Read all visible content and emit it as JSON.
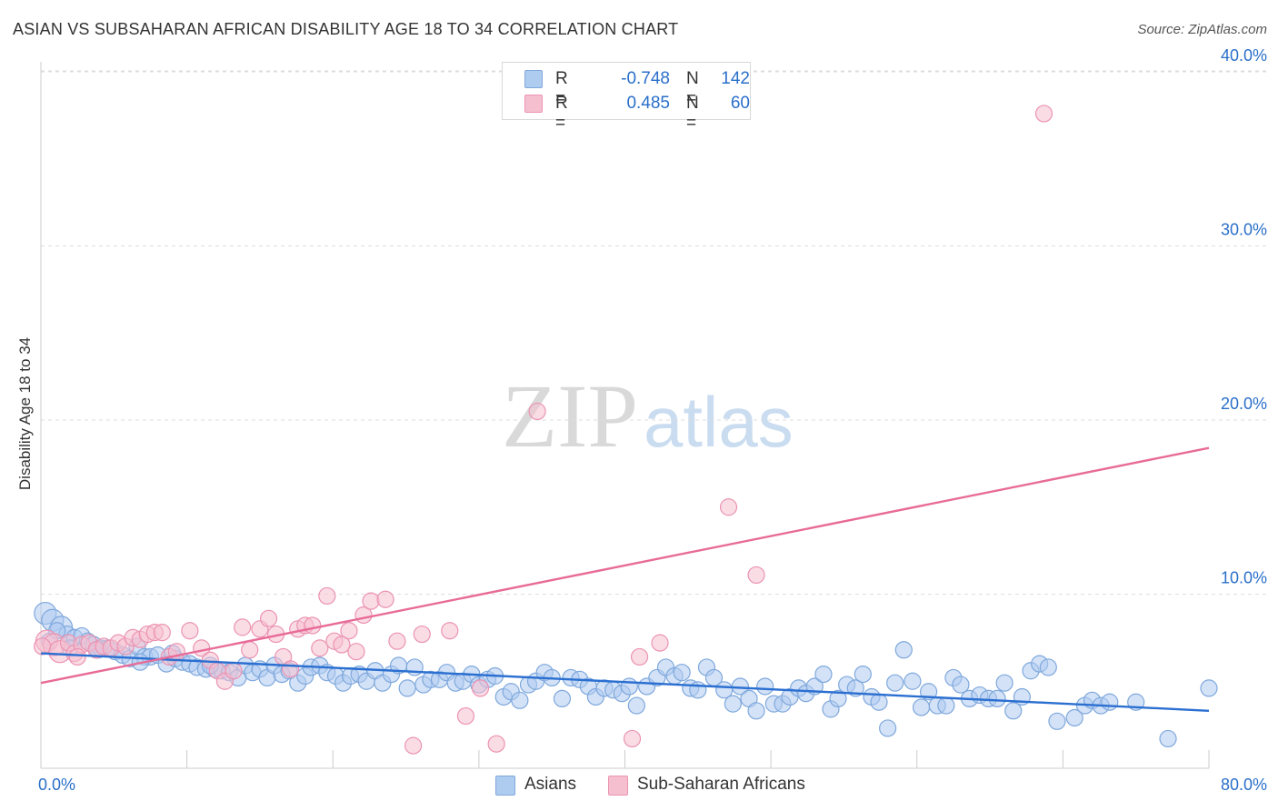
{
  "header": {
    "title": "ASIAN VS SUBSAHARAN AFRICAN DISABILITY AGE 18 TO 34 CORRELATION CHART",
    "source": "Source: ZipAtlas.com"
  },
  "watermark": {
    "zip": "ZIP",
    "atlas": "atlas"
  },
  "legend": {
    "asians": {
      "r_label": "R =",
      "r_value": "-0.748",
      "n_label": "N =",
      "n_value": "142"
    },
    "africans": {
      "r_label": "R =",
      "r_value": "0.485",
      "n_label": "N =",
      "n_value": "60"
    }
  },
  "colors": {
    "asians_fill": "#aecbf0",
    "asians_stroke": "#7fa8dc",
    "asians_line": "#2b6fd1",
    "africans_fill": "#f6bfd0",
    "africans_stroke": "#eb93b2",
    "africans_line": "#e86b97",
    "axis_text": "#2a6fc9",
    "grid": "#dddddd"
  },
  "chart_data": {
    "type": "scatter",
    "title": "ASIAN VS SUBSAHARAN AFRICAN DISABILITY AGE 18 TO 34 CORRELATION CHART",
    "ylabel": "Disability Age 18 to 34",
    "xlabel": "",
    "xlim": [
      0,
      80
    ],
    "ylim": [
      0,
      42
    ],
    "x_tick_labels": [
      {
        "value": 0,
        "label": "0.0%"
      },
      {
        "value": 80,
        "label": "80.0%"
      }
    ],
    "y_tick_labels": [
      {
        "value": 10,
        "label": "10.0%"
      },
      {
        "value": 20,
        "label": "20.0%"
      },
      {
        "value": 30,
        "label": "30.0%"
      },
      {
        "value": 40,
        "label": "40.0%"
      }
    ],
    "grid": "horizontal dashed",
    "legend": "bottom-center",
    "series": [
      {
        "name": "Asians",
        "trendline": {
          "x": [
            0,
            80
          ],
          "y": [
            6.6,
            3.3
          ]
        },
        "points": [
          [
            0.3,
            8.9
          ],
          [
            0.8,
            8.5
          ],
          [
            1.4,
            8.1
          ],
          [
            1.8,
            7.7
          ],
          [
            2.3,
            7.5
          ],
          [
            2.8,
            7.6
          ],
          [
            3.2,
            7.3
          ],
          [
            3.6,
            7.1
          ],
          [
            4.1,
            6.9
          ],
          [
            4.6,
            6.9
          ],
          [
            5.1,
            6.7
          ],
          [
            5.6,
            6.5
          ],
          [
            6.1,
            6.3
          ],
          [
            6.6,
            7.0
          ],
          [
            7.1,
            6.4
          ],
          [
            7.5,
            6.4
          ],
          [
            8.0,
            6.5
          ],
          [
            8.6,
            6.0
          ],
          [
            9.2,
            6.3
          ],
          [
            9.7,
            6.1
          ],
          [
            10.2,
            6.0
          ],
          [
            10.7,
            5.8
          ],
          [
            11.3,
            5.7
          ],
          [
            11.9,
            5.7
          ],
          [
            12.4,
            5.6
          ],
          [
            12.9,
            5.5
          ],
          [
            13.5,
            5.2
          ],
          [
            14.0,
            5.9
          ],
          [
            14.5,
            5.5
          ],
          [
            15.0,
            5.7
          ],
          [
            15.5,
            5.2
          ],
          [
            16.0,
            5.9
          ],
          [
            16.5,
            5.4
          ],
          [
            17.0,
            5.6
          ],
          [
            17.6,
            4.9
          ],
          [
            18.1,
            5.3
          ],
          [
            18.5,
            5.8
          ],
          [
            19.1,
            5.9
          ],
          [
            19.6,
            5.5
          ],
          [
            20.2,
            5.3
          ],
          [
            20.7,
            4.9
          ],
          [
            21.2,
            5.3
          ],
          [
            21.8,
            5.4
          ],
          [
            22.3,
            5.0
          ],
          [
            22.9,
            5.6
          ],
          [
            23.4,
            4.9
          ],
          [
            24.0,
            5.4
          ],
          [
            24.5,
            5.9
          ],
          [
            25.1,
            4.6
          ],
          [
            25.6,
            5.8
          ],
          [
            26.2,
            4.8
          ],
          [
            26.7,
            5.1
          ],
          [
            27.3,
            5.1
          ],
          [
            27.8,
            5.5
          ],
          [
            28.4,
            4.9
          ],
          [
            28.9,
            5.0
          ],
          [
            29.5,
            5.4
          ],
          [
            30.0,
            4.8
          ],
          [
            30.6,
            5.1
          ],
          [
            31.1,
            5.3
          ],
          [
            31.7,
            4.1
          ],
          [
            32.2,
            4.4
          ],
          [
            32.8,
            3.9
          ],
          [
            33.4,
            4.8
          ],
          [
            33.9,
            5.0
          ],
          [
            34.5,
            5.5
          ],
          [
            35.0,
            5.2
          ],
          [
            35.7,
            4.0
          ],
          [
            36.3,
            5.2
          ],
          [
            36.9,
            5.1
          ],
          [
            37.5,
            4.7
          ],
          [
            38.0,
            4.1
          ],
          [
            38.6,
            4.6
          ],
          [
            39.2,
            4.5
          ],
          [
            39.8,
            4.3
          ],
          [
            40.3,
            4.7
          ],
          [
            40.8,
            3.6
          ],
          [
            41.5,
            4.7
          ],
          [
            42.2,
            5.2
          ],
          [
            42.8,
            5.8
          ],
          [
            43.4,
            5.3
          ],
          [
            43.9,
            5.5
          ],
          [
            44.5,
            4.6
          ],
          [
            45.0,
            4.5
          ],
          [
            45.6,
            5.8
          ],
          [
            46.1,
            5.2
          ],
          [
            46.8,
            4.5
          ],
          [
            47.4,
            3.7
          ],
          [
            47.9,
            4.7
          ],
          [
            48.5,
            4.0
          ],
          [
            49.0,
            3.3
          ],
          [
            49.6,
            4.7
          ],
          [
            50.2,
            3.7
          ],
          [
            50.8,
            3.7
          ],
          [
            51.3,
            4.1
          ],
          [
            51.9,
            4.6
          ],
          [
            52.4,
            4.3
          ],
          [
            53.0,
            4.7
          ],
          [
            53.6,
            5.4
          ],
          [
            54.1,
            3.4
          ],
          [
            54.6,
            4.0
          ],
          [
            55.2,
            4.8
          ],
          [
            55.8,
            4.6
          ],
          [
            56.3,
            5.4
          ],
          [
            56.9,
            4.1
          ],
          [
            57.4,
            3.8
          ],
          [
            58.0,
            2.3
          ],
          [
            58.5,
            4.9
          ],
          [
            59.1,
            6.8
          ],
          [
            59.7,
            5.0
          ],
          [
            60.3,
            3.5
          ],
          [
            60.8,
            4.4
          ],
          [
            61.4,
            3.6
          ],
          [
            62.0,
            3.6
          ],
          [
            62.5,
            5.2
          ],
          [
            63.0,
            4.8
          ],
          [
            63.6,
            4.0
          ],
          [
            64.3,
            4.2
          ],
          [
            64.9,
            4.0
          ],
          [
            65.5,
            4.0
          ],
          [
            66.0,
            4.9
          ],
          [
            66.6,
            3.3
          ],
          [
            67.2,
            4.1
          ],
          [
            67.8,
            5.6
          ],
          [
            68.4,
            6.0
          ],
          [
            69.0,
            5.8
          ],
          [
            69.6,
            2.7
          ],
          [
            70.8,
            2.9
          ],
          [
            71.5,
            3.6
          ],
          [
            72.0,
            3.9
          ],
          [
            72.6,
            3.6
          ],
          [
            73.2,
            3.8
          ],
          [
            75.0,
            3.8
          ],
          [
            77.2,
            1.7
          ],
          [
            80.0,
            4.6
          ],
          [
            0.6,
            7.3
          ],
          [
            1.1,
            7.9
          ],
          [
            2.0,
            6.9
          ],
          [
            3.9,
            6.8
          ],
          [
            6.8,
            6.1
          ],
          [
            9.0,
            6.6
          ],
          [
            11.6,
            5.9
          ]
        ]
      },
      {
        "name": "Sub-Saharan Africans",
        "trendline": {
          "x": [
            0,
            80
          ],
          "y": [
            4.9,
            18.4
          ]
        },
        "points": [
          [
            0.4,
            7.3
          ],
          [
            0.9,
            7.1
          ],
          [
            1.3,
            6.7
          ],
          [
            1.9,
            7.2
          ],
          [
            2.3,
            6.6
          ],
          [
            2.8,
            7.1
          ],
          [
            3.3,
            7.2
          ],
          [
            3.8,
            6.8
          ],
          [
            4.3,
            7.0
          ],
          [
            4.8,
            6.9
          ],
          [
            5.3,
            7.2
          ],
          [
            5.8,
            7.0
          ],
          [
            6.3,
            7.5
          ],
          [
            6.8,
            7.4
          ],
          [
            7.3,
            7.7
          ],
          [
            7.8,
            7.8
          ],
          [
            8.3,
            7.8
          ],
          [
            8.8,
            6.4
          ],
          [
            9.3,
            6.7
          ],
          [
            10.2,
            7.9
          ],
          [
            11.0,
            6.9
          ],
          [
            11.6,
            6.2
          ],
          [
            12.1,
            5.6
          ],
          [
            12.6,
            5.0
          ],
          [
            13.2,
            5.6
          ],
          [
            13.8,
            8.1
          ],
          [
            14.3,
            6.8
          ],
          [
            15.0,
            8.0
          ],
          [
            15.6,
            8.6
          ],
          [
            16.1,
            7.7
          ],
          [
            16.6,
            6.4
          ],
          [
            17.1,
            5.7
          ],
          [
            17.6,
            8.0
          ],
          [
            18.1,
            8.2
          ],
          [
            18.6,
            8.2
          ],
          [
            19.1,
            6.9
          ],
          [
            19.6,
            9.9
          ],
          [
            20.1,
            7.3
          ],
          [
            20.6,
            7.1
          ],
          [
            21.1,
            7.9
          ],
          [
            21.6,
            6.7
          ],
          [
            22.1,
            8.8
          ],
          [
            22.6,
            9.6
          ],
          [
            23.6,
            9.7
          ],
          [
            24.4,
            7.3
          ],
          [
            25.5,
            1.3
          ],
          [
            26.1,
            7.7
          ],
          [
            28.0,
            7.9
          ],
          [
            29.1,
            3.0
          ],
          [
            30.1,
            4.6
          ],
          [
            31.2,
            1.4
          ],
          [
            34.0,
            20.5
          ],
          [
            41.0,
            6.4
          ],
          [
            40.5,
            1.7
          ],
          [
            42.4,
            7.2
          ],
          [
            47.1,
            15.0
          ],
          [
            49.0,
            11.1
          ],
          [
            68.7,
            37.6
          ],
          [
            0.1,
            7.0
          ],
          [
            2.5,
            6.4
          ]
        ]
      }
    ]
  },
  "bottom_legend": {
    "asians_label": "Asians",
    "africans_label": "Sub-Saharan Africans"
  }
}
